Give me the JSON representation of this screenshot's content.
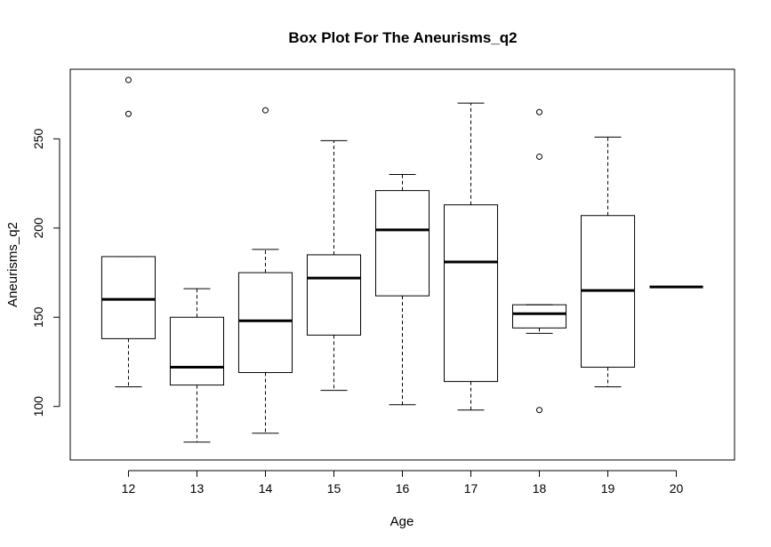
{
  "chart_data": {
    "type": "boxplot",
    "title": "Box Plot For The Aneurisms_q2",
    "xlabel": "Age",
    "ylabel": "Aneurisms_q2",
    "ylim": [
      70,
      289
    ],
    "yticks": [
      100,
      150,
      200,
      250
    ],
    "grid": false,
    "categories": [
      "12",
      "13",
      "14",
      "15",
      "16",
      "17",
      "18",
      "19",
      "20"
    ],
    "boxes": [
      {
        "category": "12",
        "whisker_low": 111,
        "q1": 138,
        "median": 160,
        "q3": 184,
        "whisker_high": 184,
        "outliers": [
          264,
          283
        ]
      },
      {
        "category": "13",
        "whisker_low": 80,
        "q1": 112,
        "median": 122,
        "q3": 150,
        "whisker_high": 166,
        "outliers": []
      },
      {
        "category": "14",
        "whisker_low": 85,
        "q1": 119,
        "median": 148,
        "q3": 175,
        "whisker_high": 188,
        "outliers": [
          266
        ]
      },
      {
        "category": "15",
        "whisker_low": 109,
        "q1": 140,
        "median": 172,
        "q3": 185,
        "whisker_high": 249,
        "outliers": []
      },
      {
        "category": "16",
        "whisker_low": 101,
        "q1": 162,
        "median": 199,
        "q3": 221,
        "whisker_high": 230,
        "outliers": []
      },
      {
        "category": "17",
        "whisker_low": 98,
        "q1": 114,
        "median": 181,
        "q3": 213,
        "whisker_high": 270,
        "outliers": []
      },
      {
        "category": "18",
        "whisker_low": 141,
        "q1": 144,
        "median": 152,
        "q3": 157,
        "whisker_high": 157,
        "outliers": [
          98,
          240,
          265
        ]
      },
      {
        "category": "19",
        "whisker_low": 111,
        "q1": 122,
        "median": 165,
        "q3": 207,
        "whisker_high": 251,
        "outliers": []
      },
      {
        "category": "20",
        "whisker_low": 167,
        "q1": 167,
        "median": 167,
        "q3": 167,
        "whisker_high": 167,
        "outliers": []
      }
    ]
  }
}
